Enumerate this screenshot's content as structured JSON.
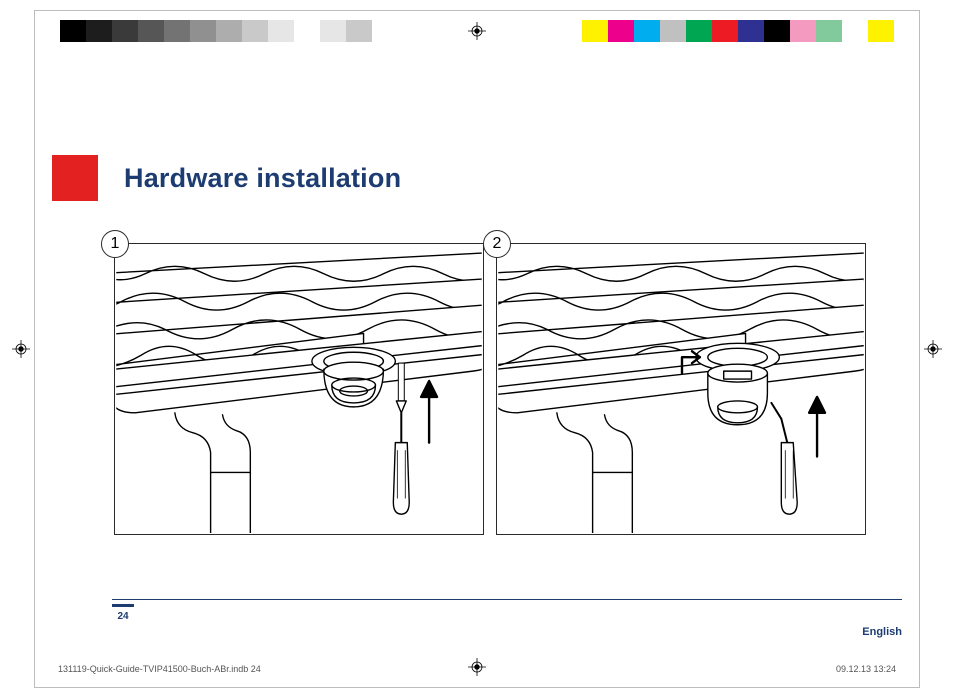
{
  "page": {
    "accent_color": "#1c3c72",
    "red_square_color": "#e32121",
    "title": "Hardware installation",
    "page_number": "24",
    "language_label": "English",
    "slug_file": "131119-Quick-Guide-TVIP41500-Buch-ABr.indb   24",
    "slug_datetime": "09.12.13   13:24"
  },
  "steps": {
    "items": [
      {
        "number": "1"
      },
      {
        "number": "2"
      }
    ]
  },
  "print_marks": {
    "grayscale_swatches": [
      "#000000",
      "#1d1d1d",
      "#3a3a3a",
      "#565656",
      "#737373",
      "#909090",
      "#adadad",
      "#c9c9c9",
      "#e6e6e6",
      "#ffffff",
      "#e6e6e6",
      "#c9c9c9"
    ],
    "color_swatches": [
      "#fff200",
      "#ec008c",
      "#00aeef",
      "#c0c0c0",
      "#00a651",
      "#ed1c24",
      "#2e3192",
      "#000000",
      "#f49ac1",
      "#82ca9c",
      "#ffffff",
      "#fff200"
    ]
  }
}
